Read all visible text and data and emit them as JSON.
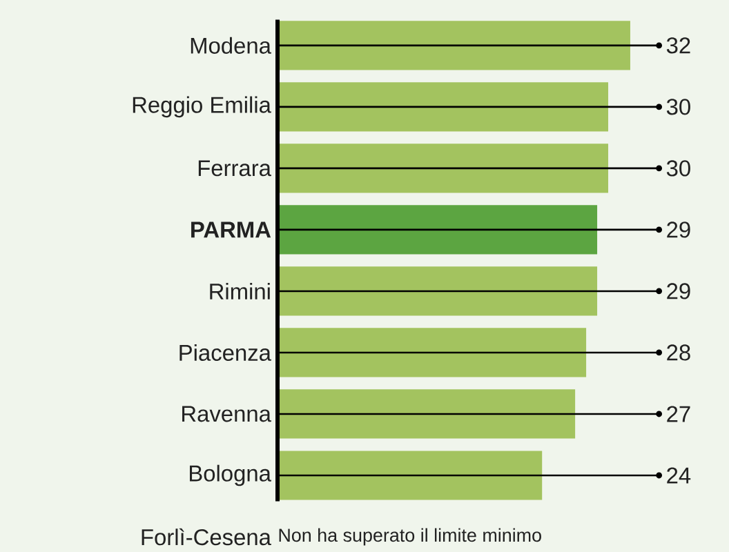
{
  "chart_data": {
    "type": "bar",
    "orientation": "horizontal",
    "categories": [
      "Modena",
      "Reggio Emilia",
      "Ferrara",
      "**PARMA**",
      "Rimini",
      "Piacenza",
      "Ravenna",
      "Bologna",
      "Forlì-Cesena"
    ],
    "values": [
      32,
      30,
      30,
      29,
      29,
      28,
      27,
      24,
      null
    ],
    "colors": [
      "#a3c35f",
      "#a3c35f",
      "#a3c35f",
      "#5ca541",
      "#a3c35f",
      "#a3c35f",
      "#a3c35f",
      "#a3c35f",
      "#a3c35f"
    ],
    "data_labels": true,
    "annotations": [
      "Non ha superato il limite minimo"
    ]
  }
}
